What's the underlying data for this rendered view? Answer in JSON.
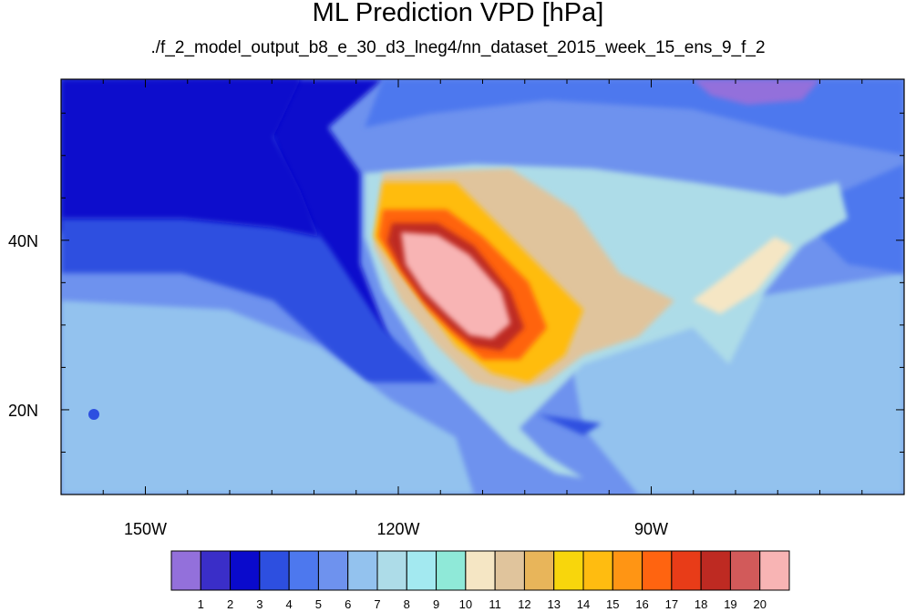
{
  "title": "ML Prediction VPD [hPa]",
  "subtitle": "./f_2_model_output_b8_e_30_d3_lneg4/nn_dataset_2015_week_15_ens_9_f_2",
  "map": {
    "lon_range": [
      -160,
      -60
    ],
    "lat_range": [
      10,
      59
    ],
    "lon_labels": [
      "150W",
      "120W",
      "90W"
    ],
    "lat_labels": [
      "40N",
      "20N"
    ],
    "lon_label_values": [
      -150,
      -120,
      -90
    ],
    "lat_label_values": [
      40,
      20
    ]
  },
  "colorbar": {
    "labels": [
      "1",
      "2",
      "3",
      "4",
      "5",
      "6",
      "7",
      "8",
      "9",
      "10",
      "11",
      "12",
      "13",
      "14",
      "15",
      "16",
      "17",
      "18",
      "19",
      "20"
    ],
    "colors": [
      "#9370DB",
      "#3A2EC8",
      "#0A0ACC",
      "#2D4FE0",
      "#4D78EE",
      "#6E92EE",
      "#93C2EE",
      "#ADDCE8",
      "#A3E9F0",
      "#8FE9D8",
      "#F5E6C4",
      "#E0C49C",
      "#E8B55A",
      "#F8D60C",
      "#FFBC10",
      "#FF9514",
      "#FF6410",
      "#E83C18",
      "#BE2A22",
      "#D25A5A",
      "#F8B4B4"
    ]
  },
  "legend": {
    "ocean_color": "#0A0ACC",
    "land_color": "#ADDCE8",
    "hot_color": "#F8B4B4"
  }
}
